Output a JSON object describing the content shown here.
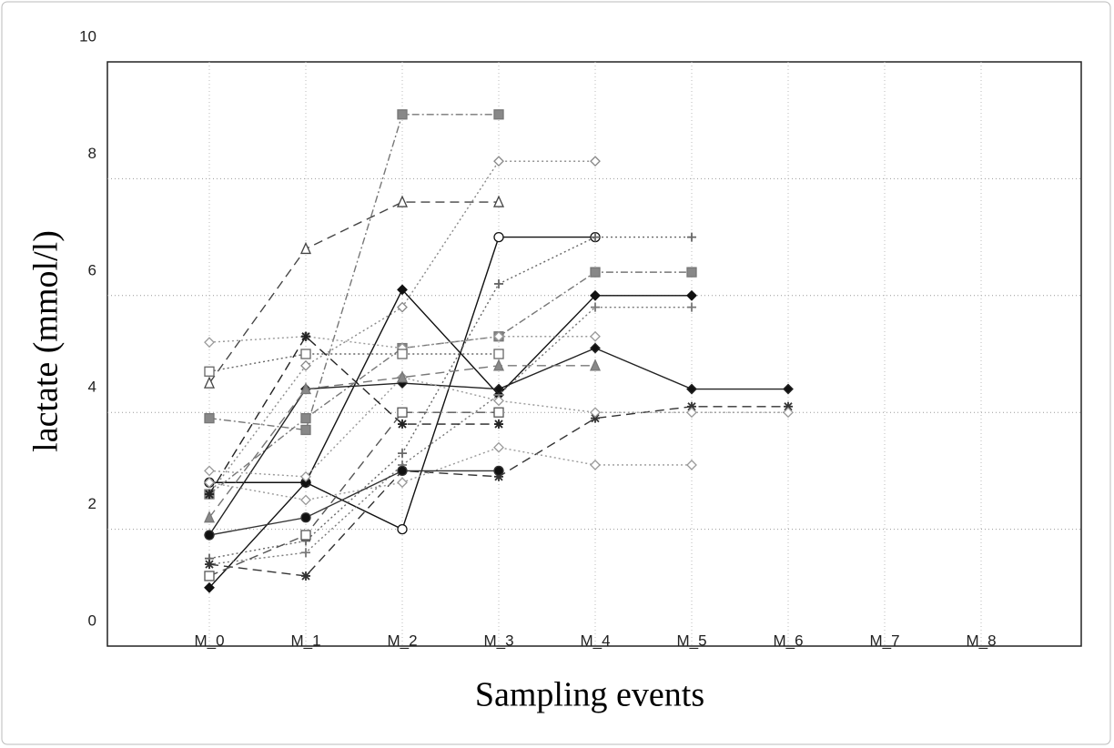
{
  "chart_data": {
    "type": "line",
    "xlabel": "Sampling events",
    "ylabel": "lactate (mmol/l)",
    "categories": [
      "M_0",
      "M_1",
      "M_2",
      "M_3",
      "M_4",
      "M_5",
      "M_6",
      "M_7",
      "M_8"
    ],
    "ylim": [
      0,
      10
    ],
    "yticks": [
      0,
      2,
      4,
      6,
      8,
      10
    ],
    "grid": true,
    "series": [
      {
        "color": "#777777",
        "marker": "square",
        "fill": "gray",
        "dash": "dashdot",
        "values": [
          3.9,
          3.7,
          9.1,
          9.1,
          null,
          null,
          null,
          null,
          null
        ]
      },
      {
        "color": "#444444",
        "marker": "triangle",
        "fill": "open",
        "dash": "dashed",
        "values": [
          4.5,
          6.8,
          7.6,
          7.6,
          null,
          null,
          null,
          null,
          null
        ]
      },
      {
        "color": "#888888",
        "marker": "diamond",
        "fill": "open",
        "dash": "dotted",
        "values": [
          2.6,
          4.8,
          5.8,
          8.3,
          8.3,
          null,
          null,
          null,
          null
        ]
      },
      {
        "color": "#111111",
        "marker": "circle",
        "fill": "open",
        "dash": "solid",
        "values": [
          2.8,
          2.8,
          2.0,
          7.0,
          7.0,
          null,
          null,
          null,
          null
        ]
      },
      {
        "color": "#666666",
        "marker": "plus",
        "fill": "black",
        "dash": "dotted",
        "values": [
          1.5,
          1.8,
          3.3,
          6.2,
          7.0,
          7.0,
          null,
          null,
          null
        ]
      },
      {
        "color": "#777777",
        "marker": "square",
        "fill": "gray",
        "dash": "dashdot",
        "values": [
          2.6,
          3.9,
          5.1,
          5.3,
          6.4,
          6.4,
          null,
          null,
          null
        ]
      },
      {
        "color": "#111111",
        "marker": "diamond",
        "fill": "black",
        "dash": "solid",
        "values": [
          1.0,
          2.8,
          6.1,
          4.3,
          6.0,
          6.0,
          null,
          null,
          null
        ]
      },
      {
        "color": "#777777",
        "marker": "plus",
        "fill": "black",
        "dash": "dotted",
        "values": [
          1.4,
          1.6,
          3.1,
          4.3,
          5.8,
          5.8,
          null,
          null,
          null
        ]
      },
      {
        "color": "#333333",
        "marker": "star",
        "fill": "black",
        "dash": "dashed",
        "values": [
          1.4,
          1.2,
          3.0,
          2.9,
          3.9,
          4.1,
          4.1,
          null,
          null
        ]
      },
      {
        "color": "#222222",
        "marker": "diamond",
        "fill": "black",
        "dash": "solid",
        "values": [
          1.9,
          4.4,
          4.5,
          4.4,
          5.1,
          4.4,
          4.4,
          null,
          null
        ]
      },
      {
        "color": "#999999",
        "marker": "diamond",
        "fill": "open",
        "dash": "dotted",
        "values": [
          5.2,
          5.3,
          5.1,
          5.3,
          5.3,
          null,
          null,
          null,
          null
        ]
      },
      {
        "color": "#999999",
        "marker": "diamond",
        "fill": "open",
        "dash": "dotted",
        "values": [
          3.0,
          2.9,
          4.6,
          4.2,
          4.0,
          4.0,
          4.0,
          null,
          null
        ]
      },
      {
        "color": "#999999",
        "marker": "diamond",
        "fill": "open",
        "dash": "dotted",
        "values": [
          2.8,
          2.5,
          2.8,
          3.4,
          3.1,
          3.1,
          null,
          null,
          null
        ]
      },
      {
        "color": "#666666",
        "marker": "square",
        "fill": "open",
        "dash": "dotted",
        "values": [
          4.7,
          5.0,
          5.0,
          5.0,
          null,
          null,
          null,
          null,
          null
        ]
      },
      {
        "color": "#777777",
        "marker": "triangle",
        "fill": "gray",
        "dash": "dashed",
        "values": [
          2.2,
          4.4,
          4.6,
          4.8,
          4.8,
          null,
          null,
          null,
          null
        ]
      },
      {
        "color": "#222222",
        "marker": "star",
        "fill": "black",
        "dash": "dashed",
        "values": [
          2.6,
          5.3,
          3.8,
          3.8,
          null,
          null,
          null,
          null,
          null
        ]
      },
      {
        "color": "#333333",
        "marker": "circle",
        "fill": "black",
        "dash": "solid",
        "values": [
          1.9,
          2.2,
          3.0,
          3.0,
          null,
          null,
          null,
          null,
          null
        ]
      },
      {
        "color": "#555555",
        "marker": "square",
        "fill": "open",
        "dash": "dashed",
        "values": [
          1.2,
          1.9,
          4.0,
          4.0,
          null,
          null,
          null,
          null,
          null
        ]
      }
    ]
  }
}
